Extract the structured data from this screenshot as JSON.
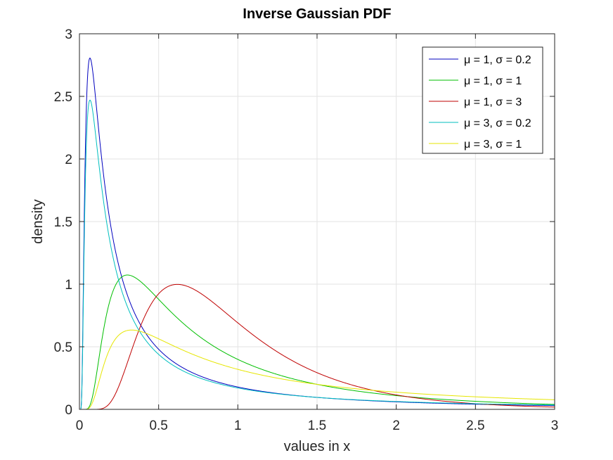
{
  "chart_data": {
    "type": "line",
    "title": "Inverse Gaussian PDF",
    "xlabel": "values in x",
    "ylabel": "density",
    "xlim": [
      0,
      3
    ],
    "ylim": [
      0,
      3
    ],
    "xticks": [
      0,
      0.5,
      1,
      1.5,
      2,
      2.5,
      3
    ],
    "xtick_labels": [
      "0",
      "0.5",
      "1",
      "1.5",
      "2",
      "2.5",
      "3"
    ],
    "yticks": [
      0,
      0.5,
      1,
      1.5,
      2,
      2.5,
      3
    ],
    "ytick_labels": [
      "0",
      "0.5",
      "1",
      "1.5",
      "2",
      "2.5",
      "3"
    ],
    "grid": true,
    "legend_position": "top-right",
    "series": [
      {
        "name": "μ = 1, σ = 0.2",
        "color": "#0000bf",
        "mu": 1,
        "lambda": 0.2,
        "x": [
          0.01,
          0.02,
          0.03,
          0.04,
          0.05,
          0.06,
          0.07,
          0.08,
          0.1,
          0.12,
          0.15,
          0.2,
          0.25,
          0.3,
          0.4,
          0.5,
          0.6,
          0.8,
          1.0,
          1.2,
          1.5,
          2.0,
          2.5,
          3.0
        ],
        "y": [
          0.0,
          0.25,
          1.05,
          1.95,
          2.55,
          2.78,
          2.8,
          2.73,
          2.42,
          2.1,
          1.72,
          1.28,
          0.98,
          0.78,
          0.54,
          0.4,
          0.33,
          0.23,
          0.17,
          0.14,
          0.11,
          0.075,
          0.055,
          0.04
        ]
      },
      {
        "name": "μ = 1, σ = 1",
        "color": "#00bf00",
        "mu": 1,
        "lambda": 1,
        "x": [
          0.05,
          0.1,
          0.15,
          0.2,
          0.25,
          0.3,
          0.35,
          0.4,
          0.5,
          0.6,
          0.8,
          1.0,
          1.2,
          1.5,
          2.0,
          2.5,
          3.0
        ],
        "y": [
          0.0,
          0.22,
          0.68,
          0.94,
          1.05,
          1.08,
          1.06,
          1.01,
          0.88,
          0.76,
          0.55,
          0.4,
          0.3,
          0.2,
          0.11,
          0.06,
          0.035
        ]
      },
      {
        "name": "μ = 1, σ = 3",
        "color": "#bf0000",
        "mu": 1,
        "lambda": 3,
        "x": [
          0.1,
          0.15,
          0.2,
          0.3,
          0.4,
          0.5,
          0.6,
          0.65,
          0.7,
          0.8,
          1.0,
          1.2,
          1.5,
          2.0,
          2.5,
          3.0
        ],
        "y": [
          0.0,
          0.04,
          0.15,
          0.52,
          0.82,
          0.96,
          1.0,
          1.0,
          0.98,
          0.91,
          0.7,
          0.5,
          0.29,
          0.11,
          0.04,
          0.015
        ]
      },
      {
        "name": "μ = 3, σ = 0.2",
        "color": "#00bfbf",
        "mu": 3,
        "lambda": 0.2,
        "x": [
          0.01,
          0.02,
          0.03,
          0.04,
          0.05,
          0.06,
          0.07,
          0.08,
          0.1,
          0.12,
          0.15,
          0.2,
          0.25,
          0.3,
          0.4,
          0.5,
          0.6,
          0.8,
          1.0,
          1.2,
          1.5,
          2.0,
          2.5,
          3.0
        ],
        "y": [
          0.0,
          0.22,
          0.95,
          1.75,
          2.25,
          2.44,
          2.47,
          2.4,
          2.15,
          1.9,
          1.55,
          1.17,
          0.91,
          0.73,
          0.51,
          0.39,
          0.31,
          0.22,
          0.17,
          0.135,
          0.105,
          0.075,
          0.058,
          0.048
        ]
      },
      {
        "name": "μ = 3, σ = 1",
        "color": "#e6e600",
        "mu": 3,
        "lambda": 1,
        "x": [
          0.05,
          0.1,
          0.15,
          0.2,
          0.25,
          0.3,
          0.35,
          0.4,
          0.5,
          0.6,
          0.8,
          1.0,
          1.2,
          1.5,
          2.0,
          2.5,
          3.0
        ],
        "y": [
          0.0,
          0.19,
          0.48,
          0.6,
          0.63,
          0.64,
          0.63,
          0.62,
          0.58,
          0.53,
          0.44,
          0.37,
          0.31,
          0.25,
          0.17,
          0.12,
          0.085
        ]
      }
    ]
  }
}
